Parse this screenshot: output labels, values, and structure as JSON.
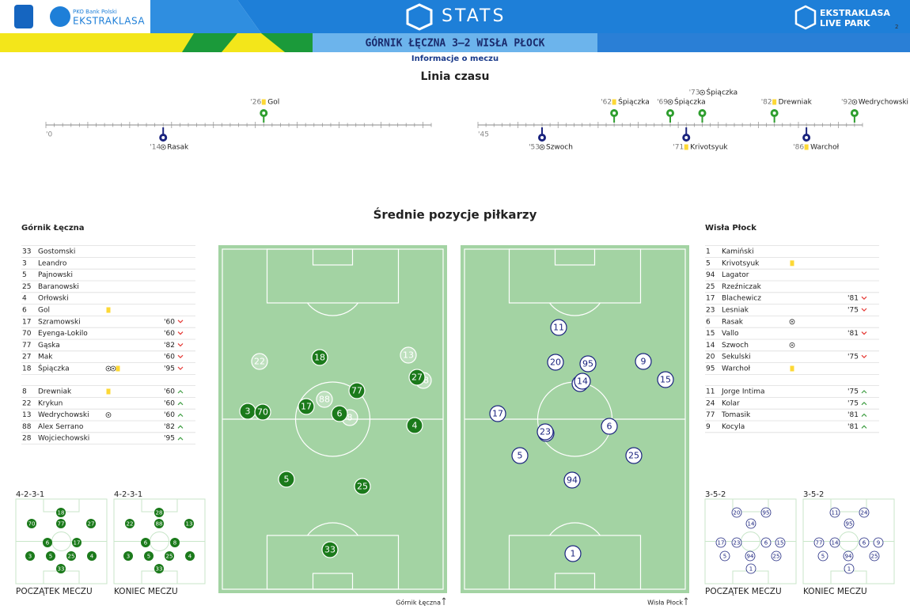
{
  "header": {
    "brand_small": "PKO Bank Polski",
    "brand": "EKSTRAKLASA",
    "section": "STATS",
    "partner_top": "EKSTRAKLASA",
    "partner_bottom": "LIVE PARK",
    "page": "2"
  },
  "match": {
    "title": "GÓRNIK ŁĘCZNA 3–2 WISŁA PŁOCK",
    "subtitle": "Informacje o meczu"
  },
  "timeline": {
    "title": "Linia czasu",
    "halves": [
      {
        "xlim": [
          0,
          46
        ],
        "label": "'0"
      },
      {
        "xlim": [
          45,
          93
        ],
        "label": "'45"
      }
    ],
    "events": [
      {
        "half": 0,
        "team": "home",
        "type": "yellow",
        "time": {
          "value": 26,
          "label": "'26"
        },
        "player": "Gol"
      },
      {
        "half": 0,
        "team": "away",
        "type": "goal",
        "time": {
          "value": 14,
          "label": "'14"
        },
        "player": "Rasak"
      },
      {
        "half": 1,
        "team": "home",
        "type": "yellow",
        "time": {
          "value": 62,
          "label": "'62"
        },
        "player": "Śpiączka"
      },
      {
        "half": 1,
        "team": "home",
        "type": "goal",
        "time": {
          "value": 69,
          "label": "'69"
        },
        "player": "Śpiączka"
      },
      {
        "half": 1,
        "team": "home",
        "type": "goal",
        "time": {
          "value": 73,
          "label": "'73"
        },
        "player": "Śpiączka"
      },
      {
        "half": 1,
        "team": "home",
        "type": "yellow",
        "time": {
          "value": 82,
          "label": "'82"
        },
        "player": "Drewniak"
      },
      {
        "half": 1,
        "team": "home",
        "type": "goal",
        "time": {
          "value": 92,
          "label": "'92"
        },
        "player": "Wedrychowski"
      },
      {
        "half": 1,
        "team": "away",
        "type": "goal",
        "time": {
          "value": 53,
          "label": "'53"
        },
        "player": "Szwoch"
      },
      {
        "half": 1,
        "team": "away",
        "type": "yellow",
        "time": {
          "value": 71,
          "label": "'71"
        },
        "player": "Krivotsyuk"
      },
      {
        "half": 1,
        "team": "away",
        "type": "yellow",
        "time": {
          "value": 86,
          "label": "'86"
        },
        "player": "Warchoł"
      }
    ]
  },
  "positions": {
    "title": "Średnie pozycje piłkarzy"
  },
  "teams": [
    {
      "name": "Górnik Łęczna",
      "color": "#1b7a1b",
      "starters": [
        {
          "number": 33,
          "name": "Gostomski"
        },
        {
          "number": 3,
          "name": "Leandro"
        },
        {
          "number": 5,
          "name": "Pajnowski"
        },
        {
          "number": 25,
          "name": "Baranowski"
        },
        {
          "number": 4,
          "name": "Orłowski"
        },
        {
          "number": 6,
          "name": "Gol",
          "icons": [
            "yellow"
          ]
        },
        {
          "number": 17,
          "name": "Szramowski",
          "sub": "'60"
        },
        {
          "number": 70,
          "name": "Eyenga-Lokilo",
          "sub": "'60"
        },
        {
          "number": 77,
          "name": "Gąska",
          "sub": "'82"
        },
        {
          "number": 27,
          "name": "Mak",
          "sub": "'60"
        },
        {
          "number": 18,
          "name": "Śpiączka",
          "icons": [
            "goal",
            "goal",
            "yellow"
          ],
          "sub": "'95"
        }
      ],
      "subs": [
        {
          "number": 8,
          "name": "Drewniak",
          "icons": [
            "yellow"
          ],
          "sub": "'60"
        },
        {
          "number": 22,
          "name": "Krykun",
          "sub": "'60"
        },
        {
          "number": 13,
          "name": "Wedrychowski",
          "icons": [
            "goal"
          ],
          "sub": "'60"
        },
        {
          "number": 88,
          "name": "Alex Serrano",
          "sub": "'82"
        },
        {
          "number": 28,
          "name": "Wojciechowski",
          "sub": "'95"
        }
      ],
      "formations": [
        {
          "name": "4-2-3-1",
          "label": "POCZĄTEK MECZU",
          "players": [
            18,
            70,
            77,
            27,
            6,
            17,
            3,
            5,
            25,
            4,
            33
          ]
        },
        {
          "name": "4-2-3-1",
          "label": "KONIEC MECZU",
          "players": [
            28,
            22,
            88,
            13,
            6,
            8,
            3,
            5,
            25,
            4,
            33
          ]
        }
      ]
    },
    {
      "name": "Wisła Płock",
      "color": "#1a237e",
      "starters": [
        {
          "number": 1,
          "name": "Kamiński"
        },
        {
          "number": 5,
          "name": "Krivotsyuk",
          "icons": [
            "yellow"
          ]
        },
        {
          "number": 94,
          "name": "Lagator"
        },
        {
          "number": 25,
          "name": "Rzeźniczak"
        },
        {
          "number": 17,
          "name": "Blachewicz",
          "sub": "'81"
        },
        {
          "number": 23,
          "name": "Lesniak",
          "sub": "'75"
        },
        {
          "number": 6,
          "name": "Rasak",
          "icons": [
            "goal"
          ]
        },
        {
          "number": 15,
          "name": "Vallo",
          "sub": "'81"
        },
        {
          "number": 14,
          "name": "Szwoch",
          "icons": [
            "goal"
          ]
        },
        {
          "number": 20,
          "name": "Sekulski",
          "sub": "'75"
        },
        {
          "number": 95,
          "name": "Warchoł",
          "icons": [
            "yellow"
          ]
        }
      ],
      "subs": [
        {
          "number": 11,
          "name": "Jorge Intima",
          "sub": "'75"
        },
        {
          "number": 24,
          "name": "Kolar",
          "sub": "'75"
        },
        {
          "number": 77,
          "name": "Tomasik",
          "sub": "'81"
        },
        {
          "number": 9,
          "name": "Kocyla",
          "sub": "'81"
        }
      ],
      "formations": [
        {
          "name": "3-5-2",
          "label": "POCZĄTEK MECZU",
          "players": [
            20,
            95,
            14,
            17,
            23,
            6,
            15,
            5,
            94,
            25,
            1
          ]
        },
        {
          "name": "3-5-2",
          "label": "KONIEC MECZU",
          "players": [
            11,
            24,
            95,
            77,
            14,
            6,
            9,
            5,
            94,
            25,
            1
          ]
        }
      ]
    }
  ]
}
